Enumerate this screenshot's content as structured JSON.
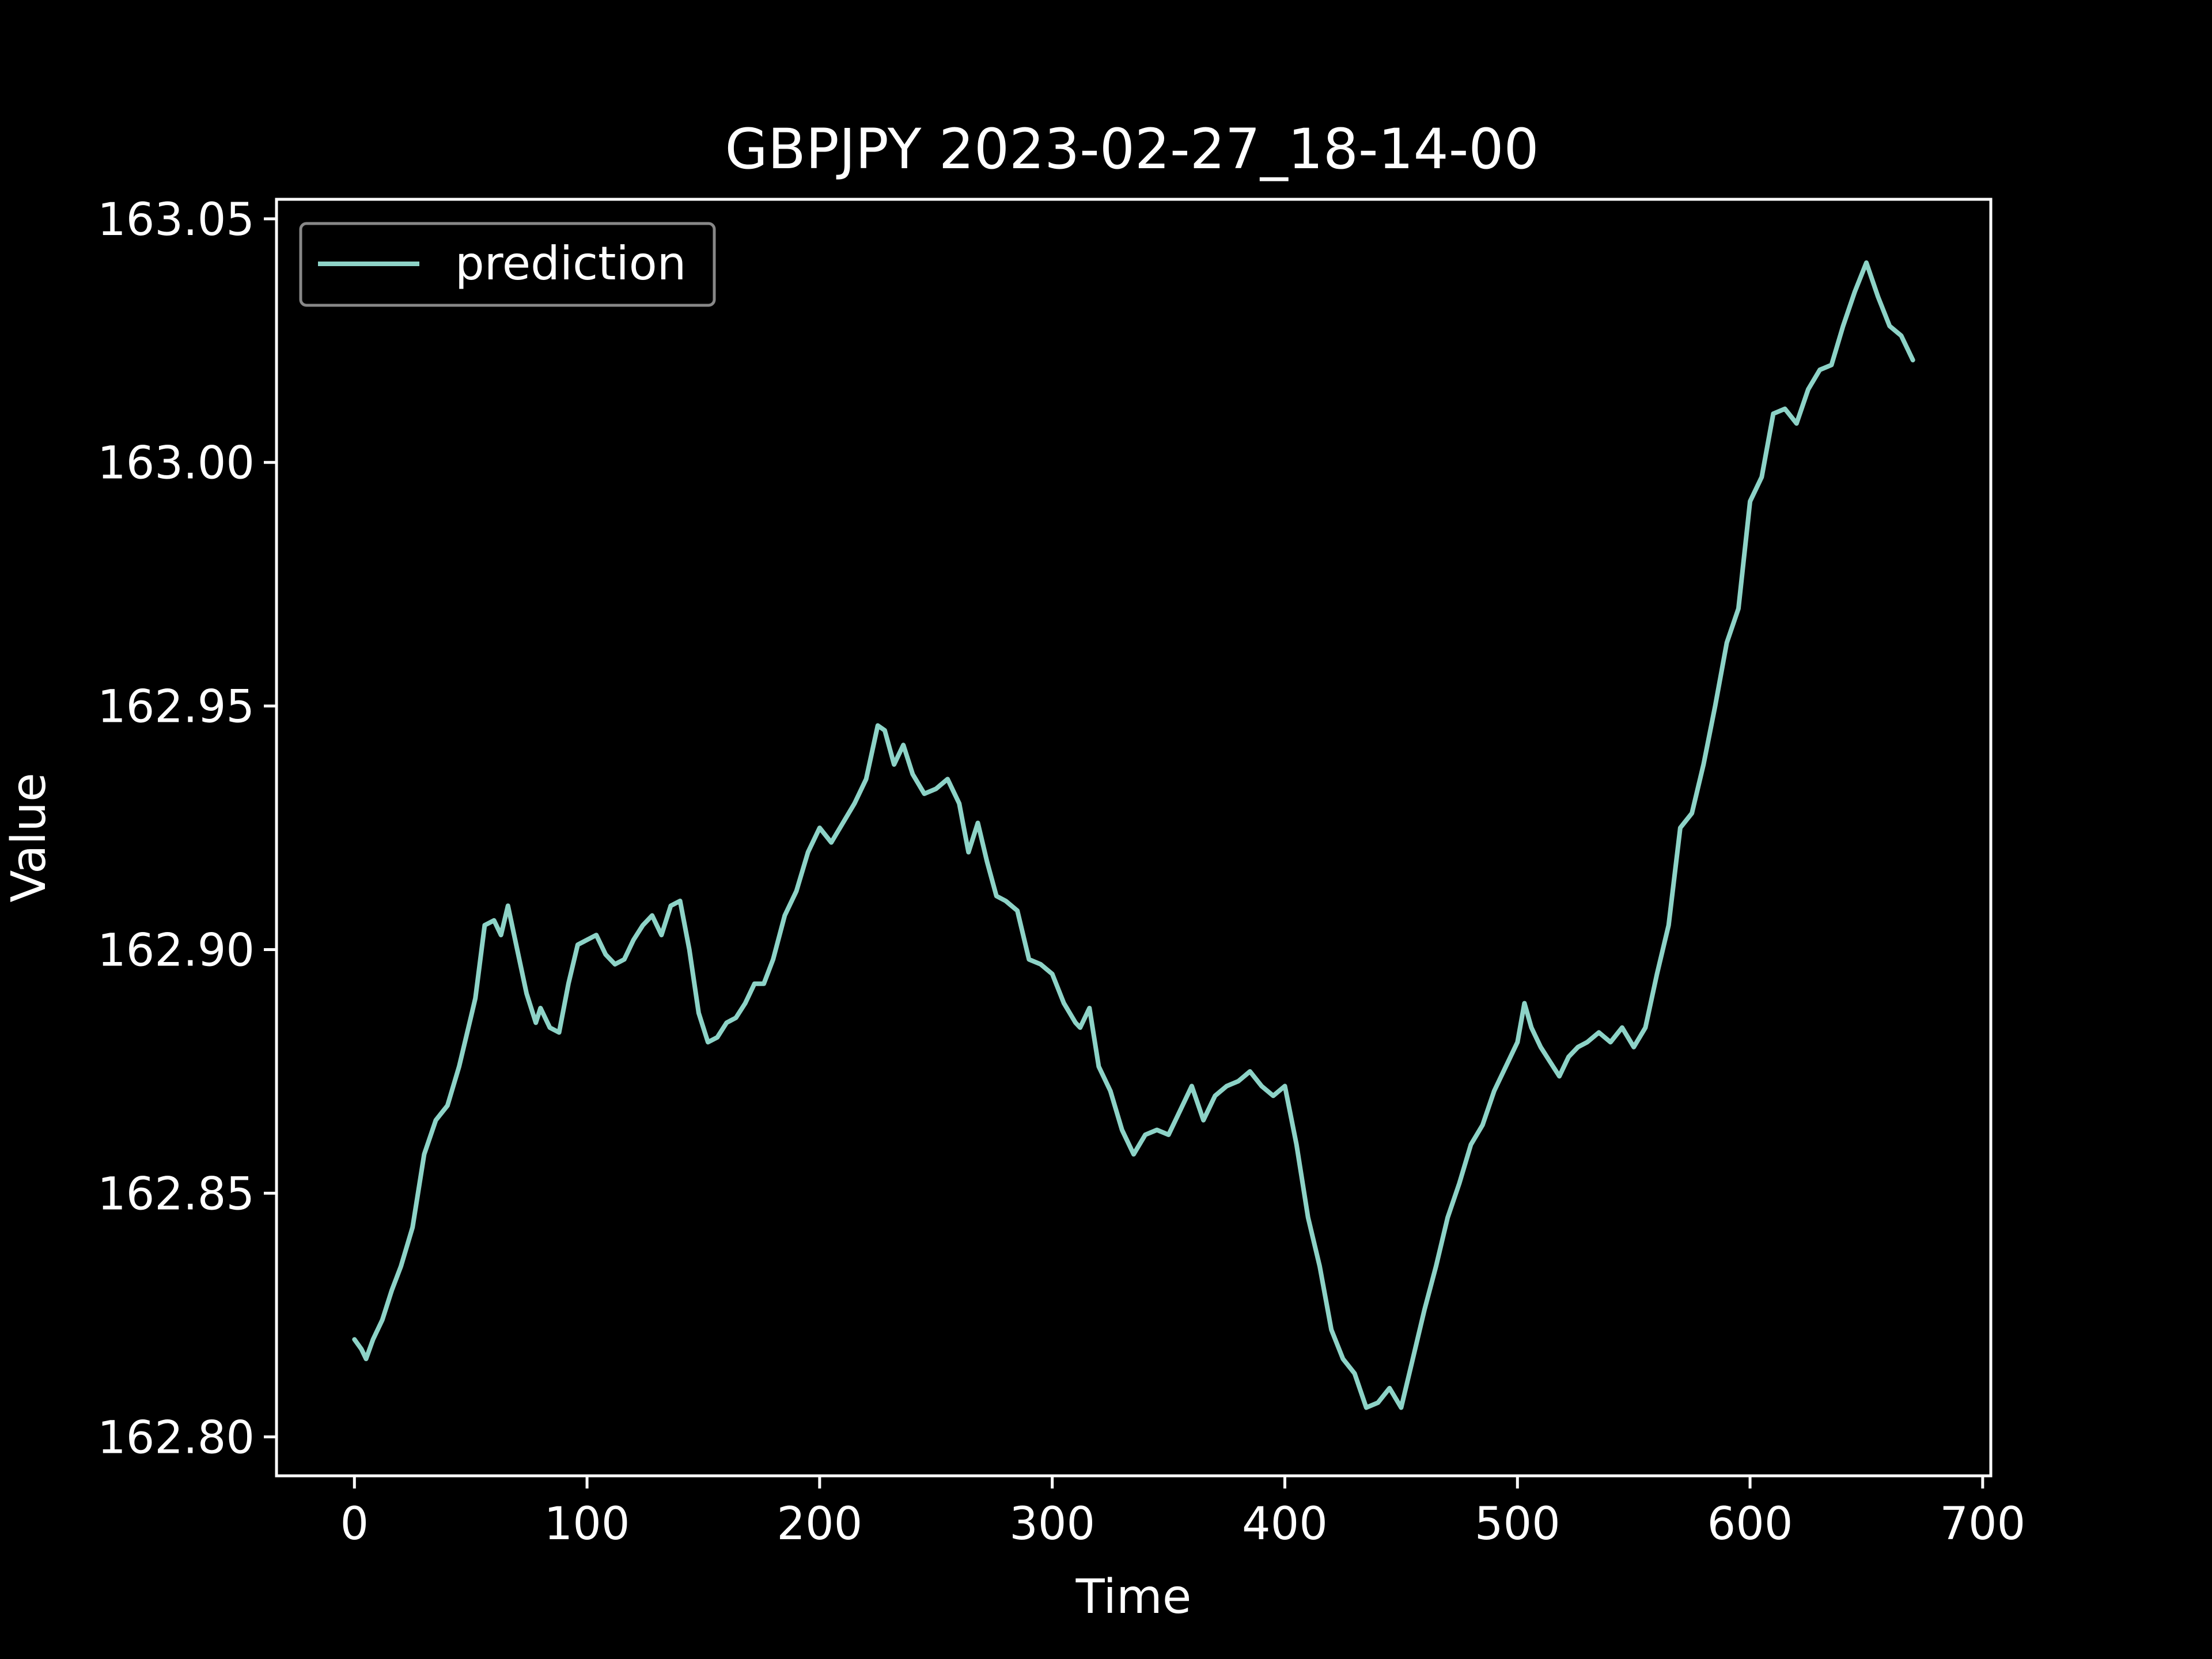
{
  "chart_data": {
    "type": "line",
    "title": "GBPJPY 2023-02-27_18-14-00",
    "xlabel": "Time",
    "ylabel": "Value",
    "xlim": [
      -33.5,
      703.5
    ],
    "ylim": [
      162.792,
      163.054
    ],
    "xticks": [
      0,
      100,
      200,
      300,
      400,
      500,
      600,
      700
    ],
    "xtick_labels": [
      "0",
      "100",
      "200",
      "300",
      "400",
      "500",
      "600",
      "700"
    ],
    "yticks": [
      162.8,
      162.85,
      162.9,
      162.95,
      163.0,
      163.05
    ],
    "ytick_labels": [
      "162.80",
      "162.85",
      "162.90",
      "162.95",
      "163.00",
      "163.05"
    ],
    "legend": {
      "placement": "upper-left",
      "entries": [
        "prediction"
      ]
    },
    "grid": false,
    "colors": {
      "background": "#000000",
      "axes": "#ffffff",
      "line": "#8dd3c7",
      "legend_border": "#888888"
    },
    "series": [
      {
        "name": "prediction",
        "x": [
          0,
          3,
          5,
          8,
          12,
          16,
          20,
          25,
          30,
          35,
          40,
          45,
          50,
          52,
          56,
          60,
          63,
          66,
          70,
          74,
          78,
          80,
          84,
          88,
          92,
          96,
          100,
          104,
          108,
          112,
          116,
          120,
          124,
          128,
          132,
          136,
          140,
          144,
          148,
          152,
          156,
          160,
          164,
          168,
          172,
          176,
          180,
          185,
          190,
          195,
          200,
          205,
          210,
          215,
          220,
          225,
          228,
          232,
          236,
          240,
          245,
          250,
          255,
          260,
          262,
          264,
          268,
          272,
          276,
          280,
          285,
          290,
          295,
          300,
          305,
          310,
          312,
          316,
          320,
          325,
          330,
          335,
          340,
          345,
          350,
          355,
          360,
          365,
          370,
          375,
          380,
          385,
          390,
          395,
          400,
          405,
          410,
          415,
          420,
          425,
          430,
          435,
          440,
          445,
          450,
          455,
          460,
          465,
          470,
          475,
          480,
          485,
          490,
          495,
          500,
          503,
          506,
          510,
          514,
          518,
          522,
          526,
          530,
          535,
          540,
          545,
          550,
          555,
          560,
          565,
          570,
          575,
          580,
          585,
          590,
          595,
          600,
          605,
          610,
          615,
          620,
          625,
          630,
          635,
          640,
          645,
          650,
          655,
          660,
          665,
          670
        ],
        "y": [
          162.82,
          162.818,
          162.816,
          162.82,
          162.824,
          162.83,
          162.835,
          162.843,
          162.858,
          162.865,
          162.868,
          162.876,
          162.886,
          162.89,
          162.905,
          162.906,
          162.903,
          162.909,
          162.9,
          162.891,
          162.885,
          162.888,
          162.884,
          162.883,
          162.893,
          162.901,
          162.902,
          162.903,
          162.899,
          162.897,
          162.898,
          162.902,
          162.905,
          162.907,
          162.903,
          162.909,
          162.91,
          162.9,
          162.887,
          162.881,
          162.882,
          162.885,
          162.886,
          162.889,
          162.893,
          162.893,
          162.898,
          162.907,
          162.912,
          162.92,
          162.925,
          162.922,
          162.926,
          162.93,
          162.935,
          162.946,
          162.945,
          162.938,
          162.942,
          162.936,
          162.932,
          162.933,
          162.935,
          162.93,
          162.925,
          162.92,
          162.926,
          162.918,
          162.911,
          162.91,
          162.908,
          162.898,
          162.897,
          162.895,
          162.889,
          162.885,
          162.884,
          162.888,
          162.876,
          162.871,
          162.863,
          162.858,
          162.862,
          162.863,
          162.862,
          162.867,
          162.872,
          162.865,
          162.87,
          162.872,
          162.873,
          162.875,
          162.872,
          162.87,
          162.872,
          162.86,
          162.845,
          162.835,
          162.822,
          162.816,
          162.813,
          162.806,
          162.807,
          162.81,
          162.806,
          162.816,
          162.826,
          162.835,
          162.845,
          162.852,
          162.86,
          162.864,
          162.871,
          162.876,
          162.881,
          162.889,
          162.884,
          162.88,
          162.877,
          162.874,
          162.878,
          162.88,
          162.881,
          162.883,
          162.881,
          162.884,
          162.88,
          162.884,
          162.895,
          162.905,
          162.925,
          162.928,
          162.938,
          162.95,
          162.963,
          162.97,
          162.992,
          162.997,
          163.01,
          163.011,
          163.008,
          163.015,
          163.019,
          163.02,
          163.028,
          163.035,
          163.041,
          163.034,
          163.028,
          163.026,
          163.021
        ]
      }
    ]
  }
}
